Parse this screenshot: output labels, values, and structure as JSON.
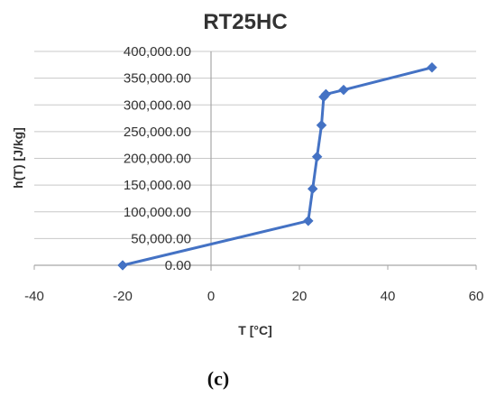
{
  "chart_data": {
    "type": "scatter",
    "title": "RT25HC",
    "xlabel": "T [°C]",
    "ylabel": "h(T) [J/kg]",
    "xlim": [
      -40,
      60
    ],
    "ylim": [
      0,
      400000
    ],
    "x_ticks": [
      "-40",
      "-20",
      "0",
      "20",
      "40",
      "60"
    ],
    "y_ticks": [
      "0.00",
      "50,000.00",
      "100,000.00",
      "150,000.00",
      "200,000.00",
      "250,000.00",
      "300,000.00",
      "350,000.00",
      "400,000.00"
    ],
    "grid": true,
    "series": [
      {
        "color": "#4472C4",
        "marker": "diamond",
        "points": [
          {
            "x": -20,
            "y": 0
          },
          {
            "x": 22,
            "y": 83000
          },
          {
            "x": 23,
            "y": 143000
          },
          {
            "x": 24,
            "y": 203000
          },
          {
            "x": 25,
            "y": 262000
          },
          {
            "x": 25.5,
            "y": 315000
          },
          {
            "x": 26,
            "y": 320000
          },
          {
            "x": 30,
            "y": 328000
          },
          {
            "x": 50,
            "y": 370000
          }
        ]
      }
    ]
  },
  "panel_label": "(c)"
}
